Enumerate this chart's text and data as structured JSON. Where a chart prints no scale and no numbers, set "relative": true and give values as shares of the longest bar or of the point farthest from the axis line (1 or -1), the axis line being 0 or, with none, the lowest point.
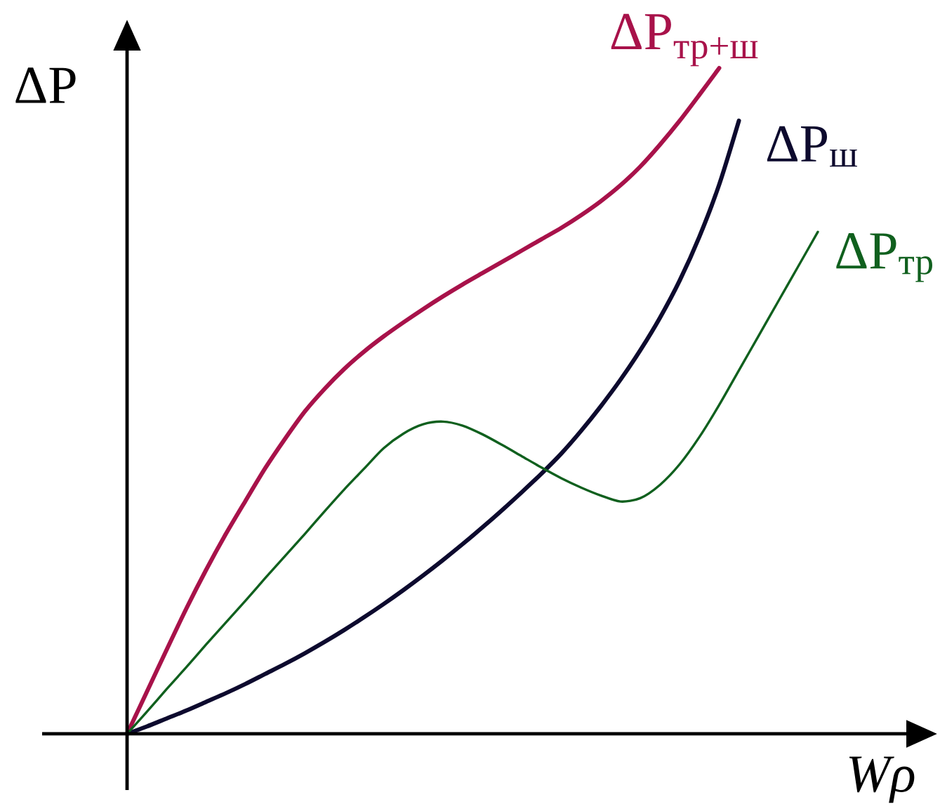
{
  "chart_data": {
    "type": "line",
    "relative": true,
    "xlabel": "Wρ",
    "ylabel": "ΔP",
    "categories": [
      null,
      null,
      null,
      null,
      null,
      null,
      null,
      null,
      null,
      null,
      null,
      null,
      null,
      null,
      null,
      null,
      null,
      null,
      null,
      null,
      null,
      null,
      null,
      null,
      null,
      null,
      null,
      null,
      null,
      null,
      null,
      null,
      null,
      null,
      null,
      null
    ],
    "series": [
      {
        "name": "ΔP$_{тр+ш}$",
        "color": "#a8124a",
        "values": [
          0,
          0.063,
          0.126,
          0.188,
          0.246,
          0.3,
          0.35,
          0.399,
          0.443,
          0.484,
          0.518,
          0.548,
          0.574,
          0.597,
          0.618,
          0.638,
          0.657,
          0.675,
          0.692,
          0.709,
          0.726,
          0.743,
          0.76,
          0.779,
          0.8,
          0.824,
          0.852,
          0.885,
          0.921,
          0.96,
          1.0,
          null,
          null,
          null,
          null,
          null
        ]
      },
      {
        "name": "ΔP$_{ш}$",
        "color": "#0d0a2e",
        "values": [
          0,
          0.011,
          0.023,
          0.035,
          0.048,
          0.061,
          0.075,
          0.09,
          0.105,
          0.121,
          0.138,
          0.156,
          0.175,
          0.195,
          0.216,
          0.238,
          0.261,
          0.285,
          0.31,
          0.336,
          0.363,
          0.391,
          0.421,
          0.455,
          0.492,
          0.532,
          0.576,
          0.625,
          0.681,
          0.747,
          0.825,
          0.921,
          null,
          null,
          null,
          null
        ]
      },
      {
        "name": "ΔP$_{тр}$",
        "color": "#10601e",
        "values": [
          0,
          0.033,
          0.067,
          0.1,
          0.134,
          0.167,
          0.2,
          0.234,
          0.267,
          0.3,
          0.334,
          0.367,
          0.398,
          0.429,
          0.451,
          0.465,
          0.469,
          0.463,
          0.45,
          0.434,
          0.417,
          0.4,
          0.384,
          0.37,
          0.358,
          0.349,
          0.354,
          0.374,
          0.405,
          0.446,
          0.494,
          0.546,
          0.598,
          0.65,
          0.702,
          0.754
        ]
      }
    ]
  }
}
